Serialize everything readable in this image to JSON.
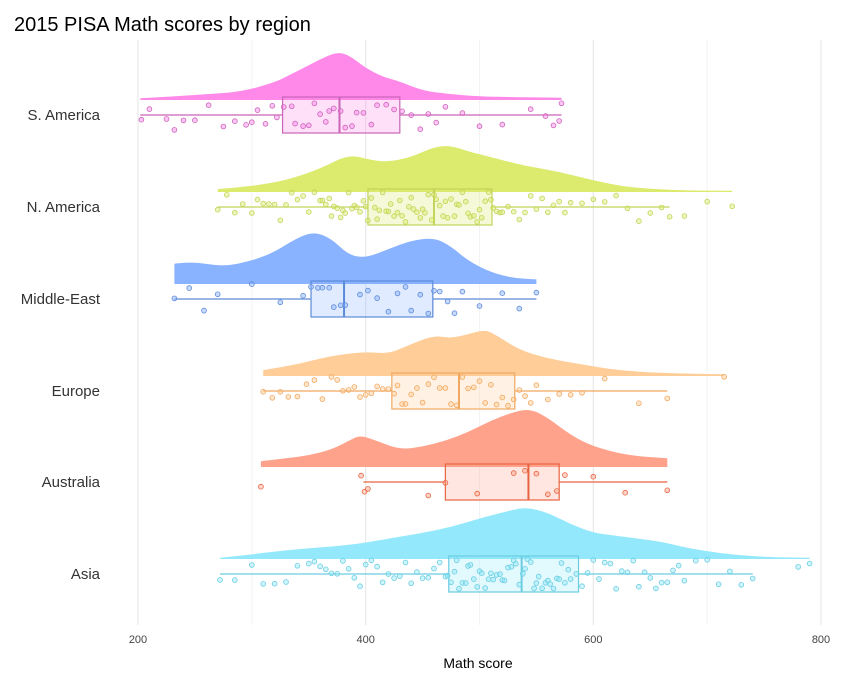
{
  "chart_data": {
    "type": "raincloud",
    "title": "2015 PISA Math scores by region",
    "xlabel": "Math score",
    "ylabel": "",
    "xlim": [
      195,
      805
    ],
    "xticks": [
      200,
      400,
      600,
      800
    ],
    "grid": true,
    "legend": "none",
    "categories": [
      "S. America",
      "N. America",
      "Middle-East",
      "Europe",
      "Australia",
      "Asia"
    ],
    "series": [
      {
        "name": "S. America",
        "color": "#FF83E8",
        "line_color": "#C964B8",
        "density_range": [
          202,
          572
        ],
        "density": [
          [
            202,
            0.03
          ],
          [
            230,
            0.06
          ],
          [
            260,
            0.1
          ],
          [
            290,
            0.14
          ],
          [
            320,
            0.3
          ],
          [
            335,
            0.45
          ],
          [
            350,
            0.6
          ],
          [
            365,
            0.75
          ],
          [
            375,
            0.82
          ],
          [
            385,
            0.78
          ],
          [
            400,
            0.55
          ],
          [
            415,
            0.4
          ],
          [
            430,
            0.32
          ],
          [
            450,
            0.16
          ],
          [
            475,
            0.1
          ],
          [
            500,
            0.06
          ],
          [
            530,
            0.05
          ],
          [
            572,
            0.04
          ]
        ],
        "box": {
          "q1": 327,
          "median": 377,
          "q3": 430,
          "whisker_low": 202,
          "whisker_high": 572
        },
        "points": [
          203,
          210,
          225,
          232,
          240,
          250,
          262,
          275,
          285,
          295,
          300,
          305,
          312,
          318,
          322,
          328,
          335,
          338,
          345,
          350,
          355,
          360,
          365,
          368,
          372,
          378,
          382,
          388,
          392,
          398,
          405,
          410,
          418,
          425,
          432,
          440,
          448,
          455,
          462,
          470,
          485,
          500,
          520,
          545,
          558,
          565,
          570,
          572
        ]
      },
      {
        "name": "N. America",
        "color": "#DAE965",
        "line_color": "#C2D45A",
        "density_range": [
          270,
          722
        ],
        "density": [
          [
            270,
            0.05
          ],
          [
            300,
            0.1
          ],
          [
            330,
            0.2
          ],
          [
            360,
            0.4
          ],
          [
            385,
            0.65
          ],
          [
            405,
            0.55
          ],
          [
            420,
            0.52
          ],
          [
            440,
            0.6
          ],
          [
            460,
            0.78
          ],
          [
            475,
            0.8
          ],
          [
            490,
            0.7
          ],
          [
            510,
            0.6
          ],
          [
            540,
            0.45
          ],
          [
            570,
            0.35
          ],
          [
            600,
            0.2
          ],
          [
            630,
            0.08
          ],
          [
            670,
            0.03
          ],
          [
            722,
            0.02
          ]
        ],
        "box": {
          "q1": 402,
          "median": 460,
          "q3": 511,
          "whisker_low": 270,
          "whisker_high": 667
        },
        "points": [
          270,
          278,
          285,
          292,
          300,
          305,
          310,
          315,
          320,
          325,
          330,
          335,
          340,
          345,
          350,
          355,
          360,
          362,
          365,
          368,
          370,
          372,
          375,
          378,
          380,
          382,
          385,
          388,
          390,
          392,
          395,
          398,
          400,
          402,
          405,
          408,
          410,
          412,
          415,
          418,
          420,
          422,
          425,
          428,
          430,
          432,
          435,
          438,
          440,
          442,
          445,
          448,
          450,
          452,
          455,
          458,
          460,
          462,
          465,
          468,
          470,
          472,
          475,
          478,
          480,
          482,
          485,
          488,
          490,
          492,
          495,
          498,
          500,
          502,
          505,
          508,
          510,
          512,
          515,
          518,
          520,
          525,
          530,
          535,
          540,
          545,
          550,
          555,
          560,
          565,
          570,
          575,
          580,
          590,
          600,
          610,
          620,
          630,
          640,
          650,
          660,
          667,
          680,
          700,
          722
        ]
      },
      {
        "name": "Middle-East",
        "color": "#84AFFF",
        "line_color": "#5C8AD8",
        "density_range": [
          232,
          550
        ],
        "density": [
          [
            232,
            0.35
          ],
          [
            250,
            0.38
          ],
          [
            275,
            0.3
          ],
          [
            300,
            0.4
          ],
          [
            320,
            0.55
          ],
          [
            340,
            0.8
          ],
          [
            355,
            0.9
          ],
          [
            370,
            0.78
          ],
          [
            385,
            0.5
          ],
          [
            400,
            0.45
          ],
          [
            420,
            0.6
          ],
          [
            440,
            0.75
          ],
          [
            460,
            0.8
          ],
          [
            475,
            0.65
          ],
          [
            490,
            0.4
          ],
          [
            510,
            0.2
          ],
          [
            530,
            0.1
          ],
          [
            550,
            0.08
          ]
        ],
        "box": {
          "q1": 352,
          "median": 381,
          "q3": 459,
          "whisker_low": 232,
          "whisker_high": 550
        },
        "points": [
          232,
          245,
          258,
          270,
          300,
          325,
          345,
          352,
          358,
          362,
          368,
          372,
          378,
          382,
          395,
          402,
          410,
          420,
          428,
          435,
          440,
          448,
          455,
          460,
          465,
          472,
          478,
          485,
          500,
          520,
          535,
          550
        ]
      },
      {
        "name": "Europe",
        "color": "#FFCA92",
        "line_color": "#F0A860",
        "density_range": [
          310,
          715
        ],
        "density": [
          [
            310,
            0.1
          ],
          [
            340,
            0.2
          ],
          [
            370,
            0.35
          ],
          [
            400,
            0.42
          ],
          [
            420,
            0.38
          ],
          [
            440,
            0.55
          ],
          [
            460,
            0.7
          ],
          [
            475,
            0.65
          ],
          [
            490,
            0.72
          ],
          [
            505,
            0.8
          ],
          [
            515,
            0.7
          ],
          [
            535,
            0.45
          ],
          [
            560,
            0.3
          ],
          [
            590,
            0.2
          ],
          [
            620,
            0.1
          ],
          [
            660,
            0.05
          ],
          [
            715,
            0.03
          ]
        ],
        "box": {
          "q1": 423,
          "median": 482,
          "q3": 531,
          "whisker_low": 310,
          "whisker_high": 665
        },
        "points": [
          310,
          318,
          325,
          332,
          340,
          348,
          355,
          362,
          370,
          375,
          380,
          385,
          390,
          395,
          400,
          405,
          410,
          415,
          420,
          425,
          428,
          432,
          435,
          440,
          445,
          450,
          455,
          460,
          465,
          470,
          475,
          480,
          485,
          490,
          495,
          500,
          505,
          510,
          515,
          520,
          525,
          530,
          535,
          540,
          545,
          550,
          560,
          570,
          580,
          590,
          610,
          640,
          665,
          715
        ]
      },
      {
        "name": "Australia",
        "color": "#FF9D86",
        "line_color": "#E8643F",
        "density_range": [
          308,
          665
        ],
        "density": [
          [
            308,
            0.1
          ],
          [
            330,
            0.15
          ],
          [
            350,
            0.2
          ],
          [
            370,
            0.3
          ],
          [
            385,
            0.45
          ],
          [
            395,
            0.55
          ],
          [
            410,
            0.45
          ],
          [
            430,
            0.3
          ],
          [
            450,
            0.35
          ],
          [
            470,
            0.45
          ],
          [
            490,
            0.6
          ],
          [
            510,
            0.8
          ],
          [
            530,
            0.95
          ],
          [
            545,
            1.0
          ],
          [
            560,
            0.85
          ],
          [
            580,
            0.55
          ],
          [
            600,
            0.35
          ],
          [
            630,
            0.2
          ],
          [
            665,
            0.15
          ]
        ],
        "box": {
          "q1": 470,
          "median": 543,
          "q3": 570,
          "whisker_low": 398,
          "whisker_high": 665
        },
        "points": [
          308,
          396,
          399,
          402,
          455,
          470,
          498,
          530,
          540,
          550,
          560,
          568,
          575,
          600,
          628,
          665
        ]
      },
      {
        "name": "Asia",
        "color": "#8DE8FB",
        "line_color": "#6CCCE0",
        "density_range": [
          272,
          790
        ],
        "density": [
          [
            272,
            0.02
          ],
          [
            300,
            0.08
          ],
          [
            330,
            0.15
          ],
          [
            360,
            0.2
          ],
          [
            390,
            0.25
          ],
          [
            420,
            0.35
          ],
          [
            450,
            0.45
          ],
          [
            475,
            0.55
          ],
          [
            500,
            0.7
          ],
          [
            520,
            0.8
          ],
          [
            540,
            0.9
          ],
          [
            560,
            0.8
          ],
          [
            580,
            0.6
          ],
          [
            600,
            0.45
          ],
          [
            620,
            0.4
          ],
          [
            640,
            0.35
          ],
          [
            660,
            0.3
          ],
          [
            680,
            0.2
          ],
          [
            710,
            0.1
          ],
          [
            740,
            0.05
          ],
          [
            760,
            0.03
          ],
          [
            790,
            0.02
          ]
        ],
        "box": {
          "q1": 473,
          "median": 537,
          "q3": 587,
          "whisker_low": 272,
          "whisker_high": 740
        },
        "points": [
          272,
          285,
          300,
          310,
          320,
          330,
          340,
          350,
          355,
          360,
          365,
          370,
          375,
          380,
          385,
          390,
          395,
          400,
          405,
          410,
          415,
          420,
          425,
          430,
          435,
          440,
          445,
          450,
          455,
          460,
          465,
          470,
          472,
          475,
          478,
          480,
          482,
          485,
          488,
          490,
          492,
          495,
          498,
          500,
          502,
          505,
          508,
          510,
          512,
          515,
          518,
          520,
          522,
          525,
          528,
          530,
          532,
          535,
          538,
          540,
          542,
          545,
          548,
          550,
          552,
          555,
          558,
          560,
          562,
          565,
          568,
          570,
          572,
          575,
          578,
          580,
          585,
          590,
          595,
          600,
          605,
          610,
          615,
          620,
          625,
          630,
          635,
          640,
          645,
          650,
          655,
          660,
          665,
          670,
          675,
          680,
          690,
          700,
          710,
          720,
          730,
          740,
          780,
          790
        ]
      }
    ]
  }
}
